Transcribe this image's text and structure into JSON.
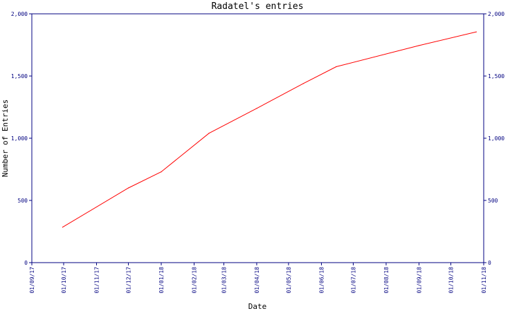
{
  "colors": {
    "axis": "#000080",
    "line": "#ff0000",
    "text": "#000080",
    "background": "#ffffff"
  },
  "chart_data": {
    "type": "line",
    "title": "Radatel's entries",
    "xlabel": "Date",
    "ylabel": "Number of Entries",
    "x_tick_labels": [
      "01/09/17",
      "01/10/17",
      "01/11/17",
      "01/12/17",
      "01/01/18",
      "01/02/18",
      "01/03/18",
      "01/04/18",
      "01/05/18",
      "01/06/18",
      "01/07/18",
      "01/08/18",
      "01/09/18",
      "01/10/18",
      "01/11/18"
    ],
    "y_tick_labels": [
      "0",
      "500",
      "1,000",
      "1,500",
      "2,000"
    ],
    "ylim": [
      0,
      2000
    ],
    "xlim": [
      "2017-09-01",
      "2018-11-01"
    ],
    "grid": false,
    "right_axis_mirrored": true,
    "series": [
      {
        "x": [
          "2017-09-30",
          "2017-12-01",
          "2018-01-01",
          "2018-02-15",
          "2018-04-01",
          "2018-05-15",
          "2018-06-15",
          "2018-09-01",
          "2018-10-25"
        ],
        "y": [
          285,
          600,
          730,
          1040,
          1240,
          1440,
          1575,
          1745,
          1855
        ]
      }
    ]
  }
}
